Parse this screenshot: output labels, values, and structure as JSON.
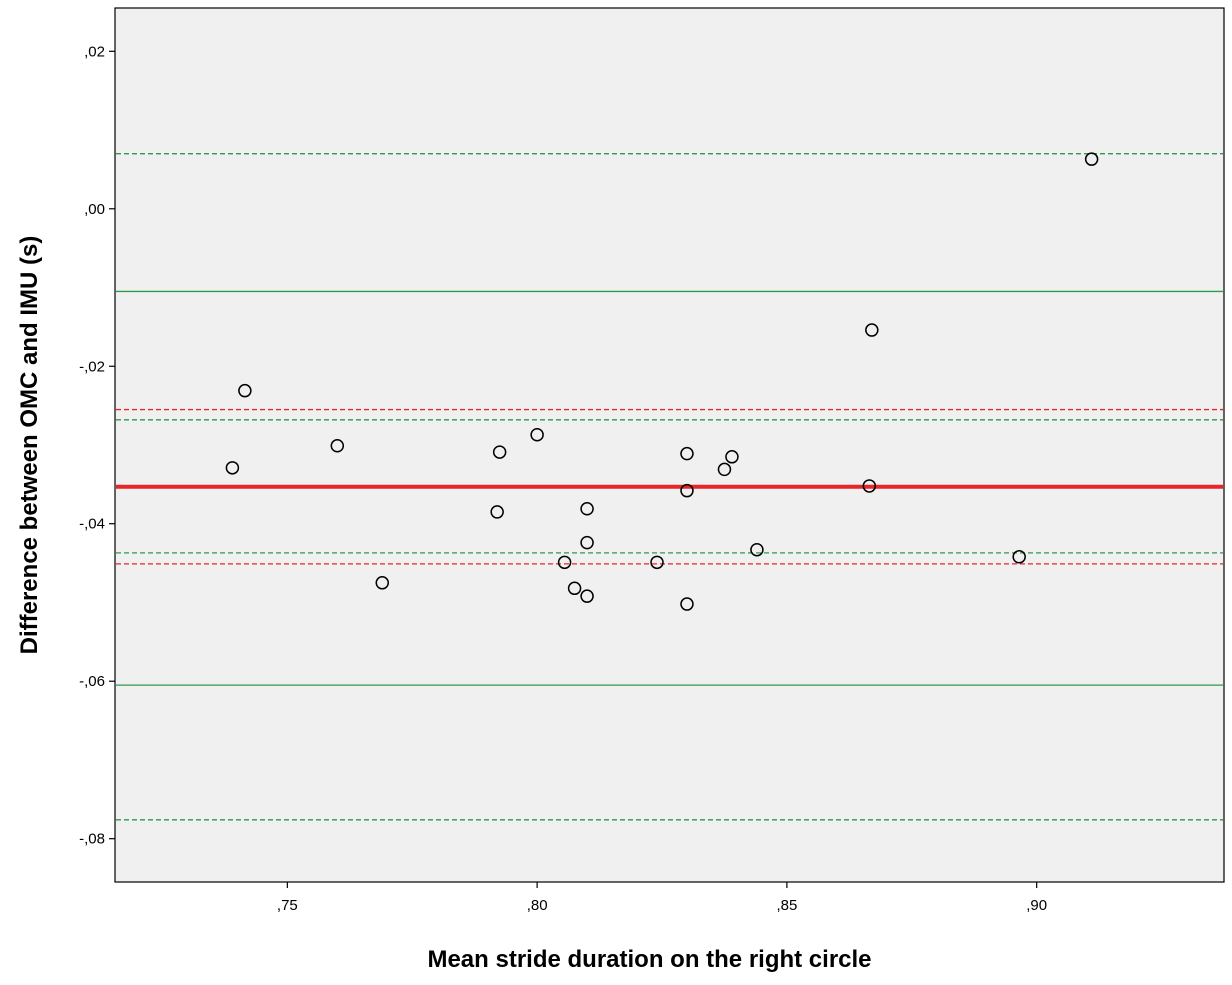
{
  "chart_data": {
    "type": "scatter",
    "title": "",
    "xlabel": "Mean stride duration on the right circle",
    "ylabel": "Difference between OMC and IMU (s)",
    "xlim": [
      0.7155,
      0.9375
    ],
    "ylim": [
      -0.0855,
      0.0255
    ],
    "x_ticks": [
      {
        "value": 0.75,
        "label": ",75"
      },
      {
        "value": 0.8,
        "label": ",80"
      },
      {
        "value": 0.85,
        "label": ",85"
      },
      {
        "value": 0.9,
        "label": ",90"
      }
    ],
    "y_ticks": [
      {
        "value": 0.02,
        "label": ",02"
      },
      {
        "value": 0.0,
        "label": ",00"
      },
      {
        "value": -0.02,
        "label": "-,02"
      },
      {
        "value": -0.04,
        "label": "-,04"
      },
      {
        "value": -0.06,
        "label": "-,06"
      },
      {
        "value": -0.08,
        "label": "-,08"
      }
    ],
    "grid": false,
    "background_color": "#f0f0f0",
    "points": [
      {
        "x": 0.739,
        "y": -0.0329
      },
      {
        "x": 0.7415,
        "y": -0.0231
      },
      {
        "x": 0.76,
        "y": -0.0301
      },
      {
        "x": 0.769,
        "y": -0.0475
      },
      {
        "x": 0.7925,
        "y": -0.0309
      },
      {
        "x": 0.792,
        "y": -0.0385
      },
      {
        "x": 0.8,
        "y": -0.0287
      },
      {
        "x": 0.8055,
        "y": -0.0449
      },
      {
        "x": 0.8075,
        "y": -0.0482
      },
      {
        "x": 0.81,
        "y": -0.0381
      },
      {
        "x": 0.81,
        "y": -0.0424
      },
      {
        "x": 0.81,
        "y": -0.0492
      },
      {
        "x": 0.824,
        "y": -0.0449
      },
      {
        "x": 0.83,
        "y": -0.0311
      },
      {
        "x": 0.83,
        "y": -0.0358
      },
      {
        "x": 0.83,
        "y": -0.0502
      },
      {
        "x": 0.8375,
        "y": -0.0331
      },
      {
        "x": 0.839,
        "y": -0.0315
      },
      {
        "x": 0.844,
        "y": -0.0433
      },
      {
        "x": 0.8665,
        "y": -0.0352
      },
      {
        "x": 0.867,
        "y": -0.0154
      },
      {
        "x": 0.8965,
        "y": -0.0442
      },
      {
        "x": 0.911,
        "y": 0.0063
      }
    ],
    "reference_lines": [
      {
        "y": -0.0353,
        "color": "#e8262a",
        "style": "solid",
        "width": 4
      },
      {
        "y": -0.0255,
        "color": "#e8262a",
        "style": "dashed",
        "width": 1.3
      },
      {
        "y": -0.0451,
        "color": "#e8262a",
        "style": "dashed",
        "width": 1.3
      },
      {
        "y": -0.0105,
        "color": "#2e9a4a",
        "style": "solid",
        "width": 1.3
      },
      {
        "y": -0.0605,
        "color": "#2e9a4a",
        "style": "solid",
        "width": 1.3
      },
      {
        "y": 0.007,
        "color": "#2e9a4a",
        "style": "dashed",
        "width": 1.3
      },
      {
        "y": -0.0268,
        "color": "#2e9a4a",
        "style": "dashed",
        "width": 1.3
      },
      {
        "y": -0.0437,
        "color": "#2e9a4a",
        "style": "dashed",
        "width": 1.3
      },
      {
        "y": -0.0776,
        "color": "#2e9a4a",
        "style": "dashed",
        "width": 1.3
      }
    ],
    "marker": {
      "shape": "circle",
      "fill": "none",
      "stroke": "#000000"
    }
  }
}
